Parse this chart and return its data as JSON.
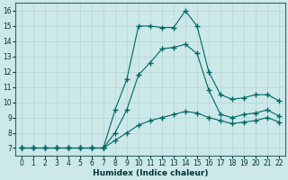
{
  "title": "",
  "xlabel": "Humidex (Indice chaleur)",
  "ylabel": "",
  "bg_color": "#cce8e8",
  "grid_color": "#b8d8d8",
  "line_color": "#006666",
  "xlim": [
    -0.5,
    22.5
  ],
  "ylim": [
    6.5,
    16.5
  ],
  "xticks": [
    0,
    1,
    2,
    3,
    4,
    5,
    6,
    7,
    8,
    9,
    10,
    11,
    12,
    13,
    14,
    15,
    16,
    17,
    18,
    19,
    20,
    21,
    22
  ],
  "yticks": [
    7,
    8,
    9,
    10,
    11,
    12,
    13,
    14,
    15,
    16
  ],
  "series": [
    {
      "x": [
        0,
        1,
        2,
        3,
        4,
        5,
        6,
        7,
        8,
        9,
        10,
        11,
        12,
        13,
        14,
        15,
        16,
        17,
        18,
        19,
        20,
        21,
        22
      ],
      "y": [
        7,
        7,
        7,
        7,
        7,
        7,
        7,
        7,
        9.5,
        11.5,
        15,
        15,
        14.9,
        14.9,
        16,
        15,
        12,
        10.5,
        10.2,
        10.3,
        10.5,
        10.5,
        10.1
      ],
      "linestyle": "-",
      "marker": "+"
    },
    {
      "x": [
        0,
        1,
        2,
        3,
        4,
        5,
        6,
        7,
        8,
        9,
        10,
        11,
        12,
        13,
        14,
        15,
        16,
        17,
        18,
        19,
        20,
        21,
        22
      ],
      "y": [
        7,
        7,
        7,
        7,
        7,
        7,
        7,
        7,
        8.0,
        9.5,
        11.8,
        12.6,
        13.5,
        13.6,
        13.8,
        13.2,
        10.8,
        9.2,
        9.0,
        9.2,
        9.3,
        9.5,
        9.1
      ],
      "linestyle": "-",
      "marker": "+"
    },
    {
      "x": [
        0,
        1,
        2,
        3,
        4,
        5,
        6,
        7,
        8,
        9,
        10,
        11,
        12,
        13,
        14,
        15,
        16,
        17,
        18,
        19,
        20,
        21,
        22
      ],
      "y": [
        7,
        7,
        7,
        7,
        7,
        7,
        7,
        7,
        7.5,
        8.0,
        8.5,
        8.8,
        9.0,
        9.2,
        9.4,
        9.3,
        9.0,
        8.8,
        8.6,
        8.7,
        8.8,
        9.0,
        8.7
      ],
      "linestyle": "-",
      "marker": "+"
    }
  ]
}
